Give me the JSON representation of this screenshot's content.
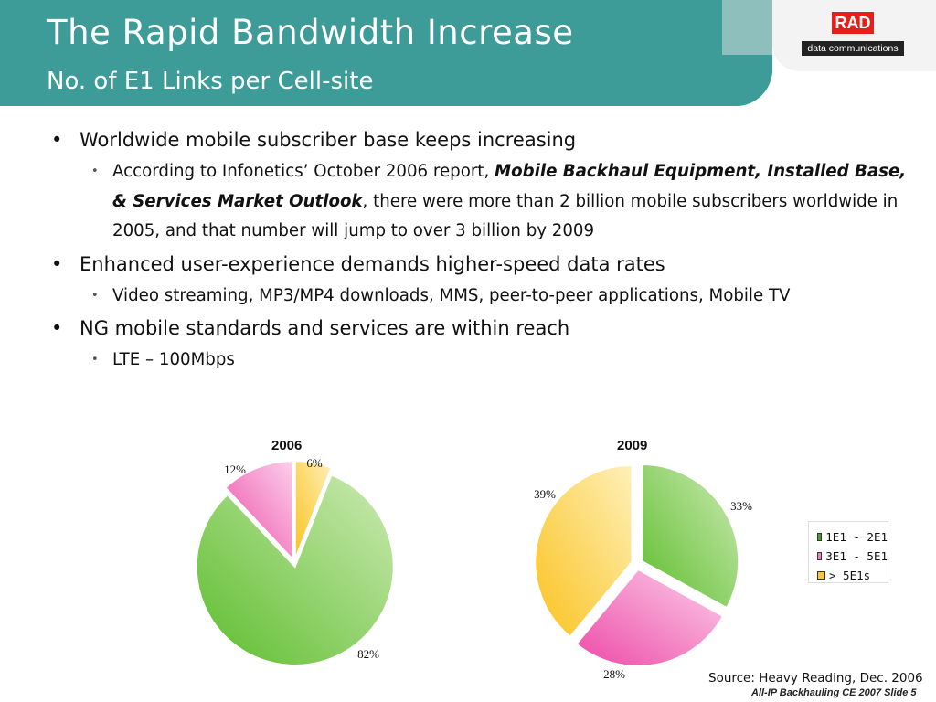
{
  "header": {
    "title": "The Rapid Bandwidth Increase",
    "subtitle": "No. of E1 Links per Cell-site",
    "logo_text": "RAD",
    "logo_tagline": "data communications",
    "header_color": "#3d9b98",
    "logo_color": "#e2211c"
  },
  "bullets": [
    {
      "text": "Worldwide mobile subscriber base keeps increasing",
      "sub": {
        "prefix": "According to Infonetics’ October 2006 report, ",
        "emphasis": "Mobile Backhaul Equipment, Installed Base, & Services Market Outlook",
        "suffix": ", there were more than 2 billion mobile subscribers worldwide in 2005, and that number will jump to over 3 billion by 2009"
      }
    },
    {
      "text": "Enhanced user-experience demands higher-speed data rates",
      "sub": {
        "text": "Video streaming, MP3/MP4 downloads, MMS, peer-to-peer applications, Mobile TV"
      }
    },
    {
      "text": "NG mobile standards and services are within reach",
      "sub": {
        "text": "LTE – 100Mbps"
      }
    }
  ],
  "chart_data": [
    {
      "type": "pie",
      "title": "2006",
      "categories": [
        "1E1 - 2E1",
        "3E1 - 5E1",
        "> 5E1s"
      ],
      "values": [
        82,
        12,
        6
      ],
      "labels": [
        "82%",
        "12%",
        "6%"
      ],
      "colors": [
        "#7fcc4f",
        "#f081c8",
        "#fcd65a"
      ]
    },
    {
      "type": "pie",
      "title": "2009",
      "categories": [
        "1E1 - 2E1",
        "3E1 - 5E1",
        "> 5E1s"
      ],
      "values": [
        33,
        28,
        39
      ],
      "labels": [
        "33%",
        "28%",
        "39%"
      ],
      "colors": [
        "#7fcc4f",
        "#f081c8",
        "#fcd65a"
      ],
      "legend_position": "right"
    }
  ],
  "legend": [
    {
      "label": "1E1 - 2E1",
      "color": "#4aa02c"
    },
    {
      "label": "3E1 - 5E1",
      "color": "#f081c8"
    },
    {
      "label": "> 5E1s",
      "color": "#fcc73a"
    }
  ],
  "source": "Source: Heavy Reading, Dec. 2006",
  "footer": "All-IP Backhauling CE 2007  Slide 5"
}
